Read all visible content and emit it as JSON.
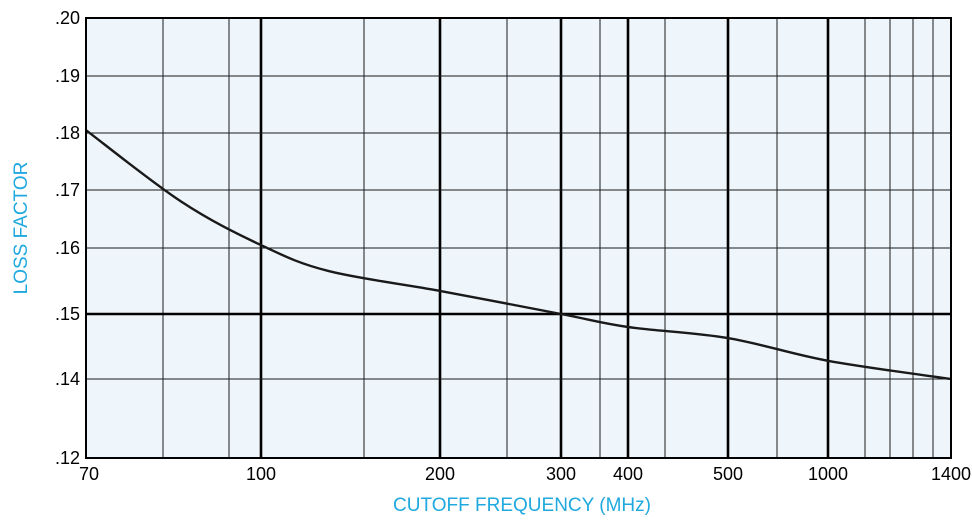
{
  "colors": {
    "plot_background": "#eef6fc",
    "grid_minor": "#1a1a1a",
    "grid_major": "#000000",
    "curve": "#1a1a1a",
    "axis_title": "#1fa9df"
  },
  "chart_data": {
    "type": "line",
    "title": "",
    "xlabel": "CUTOFF FREQUENCY (MHz)",
    "ylabel": "LOSS FACTOR",
    "x_scale": "nonuniform-log",
    "xlim": [
      70,
      1400
    ],
    "ylim": [
      0.12,
      0.2
    ],
    "grid": true,
    "legend": "none",
    "x_ticks": [
      {
        "value": 70,
        "label": "70"
      },
      {
        "value": 100,
        "label": "100"
      },
      {
        "value": 200,
        "label": "200"
      },
      {
        "value": 300,
        "label": "300"
      },
      {
        "value": 400,
        "label": "400"
      },
      {
        "value": 500,
        "label": "500"
      },
      {
        "value": 1000,
        "label": "1000"
      },
      {
        "value": 1400,
        "label": "1400"
      }
    ],
    "y_ticks": [
      {
        "value": 0.12,
        "label": ".12"
      },
      {
        "value": 0.14,
        "label": ".14"
      },
      {
        "value": 0.15,
        "label": ".15"
      },
      {
        "value": 0.16,
        "label": ".16"
      },
      {
        "value": 0.17,
        "label": ".17"
      },
      {
        "value": 0.18,
        "label": ".18"
      },
      {
        "value": 0.19,
        "label": ".19"
      },
      {
        "value": 0.2,
        "label": ".20"
      }
    ],
    "series": [
      {
        "x": [
          70,
          85,
          100,
          130,
          200,
          300,
          400,
          500,
          1000,
          1400
        ],
        "y": [
          0.1805,
          0.168,
          0.1605,
          0.1565,
          0.1535,
          0.15,
          0.148,
          0.1463,
          0.1428,
          0.14
        ]
      }
    ]
  }
}
